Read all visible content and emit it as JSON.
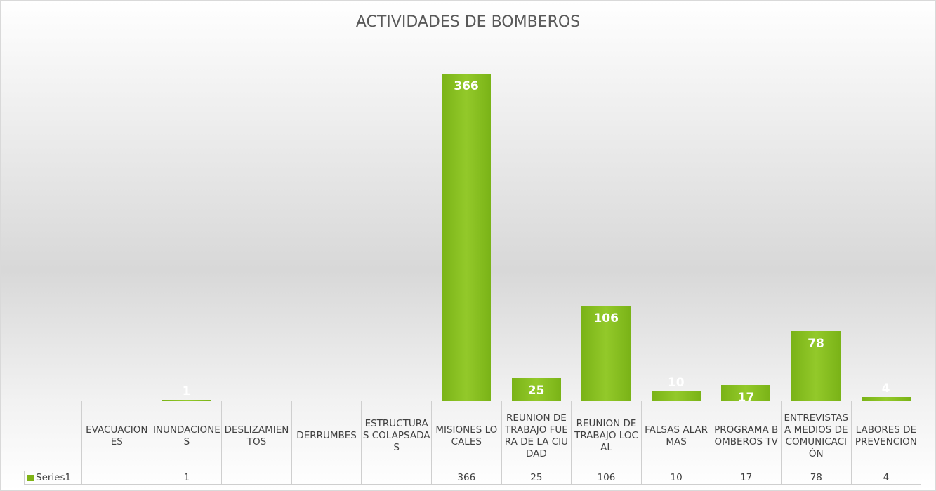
{
  "chart_data": {
    "type": "bar",
    "title": "ACTIVIDADES DE BOMBEROS",
    "categories": [
      "EVACUACIONES",
      "INUNDACIONES",
      "DESLIZAMIENTOS",
      "DERRUMBES",
      "ESTRUCTURAS COLAPSADAS",
      "MISIONES LOCALES",
      "REUNION DE TRABAJO FUERA DE LA CIUDAD",
      "REUNION DE TRABAJO LOCAL",
      "FALSAS ALARMAS",
      "PROGRAMA BOMBEROS TV",
      "ENTREVISTAS A MEDIOS DE COMUNICACIÓN",
      "LABORES DE PREVENCION"
    ],
    "series": [
      {
        "name": "Series1",
        "color": "#7fb317",
        "values": [
          null,
          1,
          null,
          null,
          null,
          366,
          25,
          106,
          10,
          17,
          78,
          4
        ]
      }
    ]
  }
}
